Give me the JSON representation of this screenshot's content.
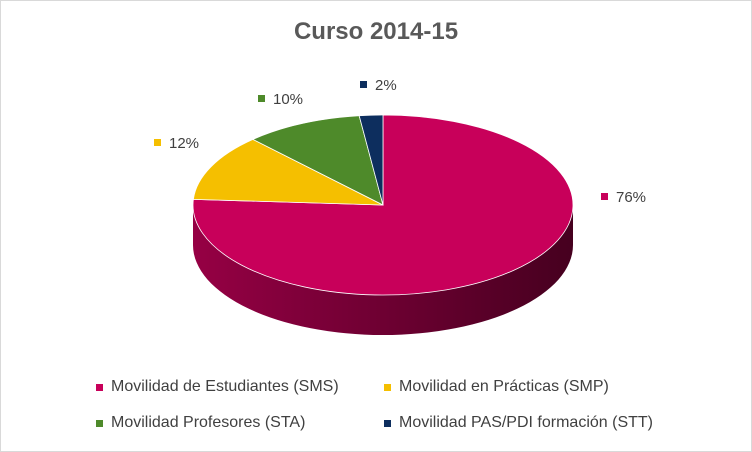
{
  "chart_data": {
    "type": "pie",
    "title": "Curso 2014-15",
    "categories": [
      "Movilidad de Estudiantes (SMS)",
      "Movilidad en Prácticas (SMP)",
      "Movilidad Profesores (STA)",
      "Movilidad PAS/PDI formación (STT)"
    ],
    "values": [
      76,
      12,
      10,
      2
    ],
    "value_labels": [
      "76%",
      "12%",
      "10%",
      "2%"
    ],
    "colors": [
      "#c8005a",
      "#f5bf00",
      "#4e8a2a",
      "#0d2e5e"
    ],
    "style": "3d",
    "legend_position": "bottom"
  }
}
